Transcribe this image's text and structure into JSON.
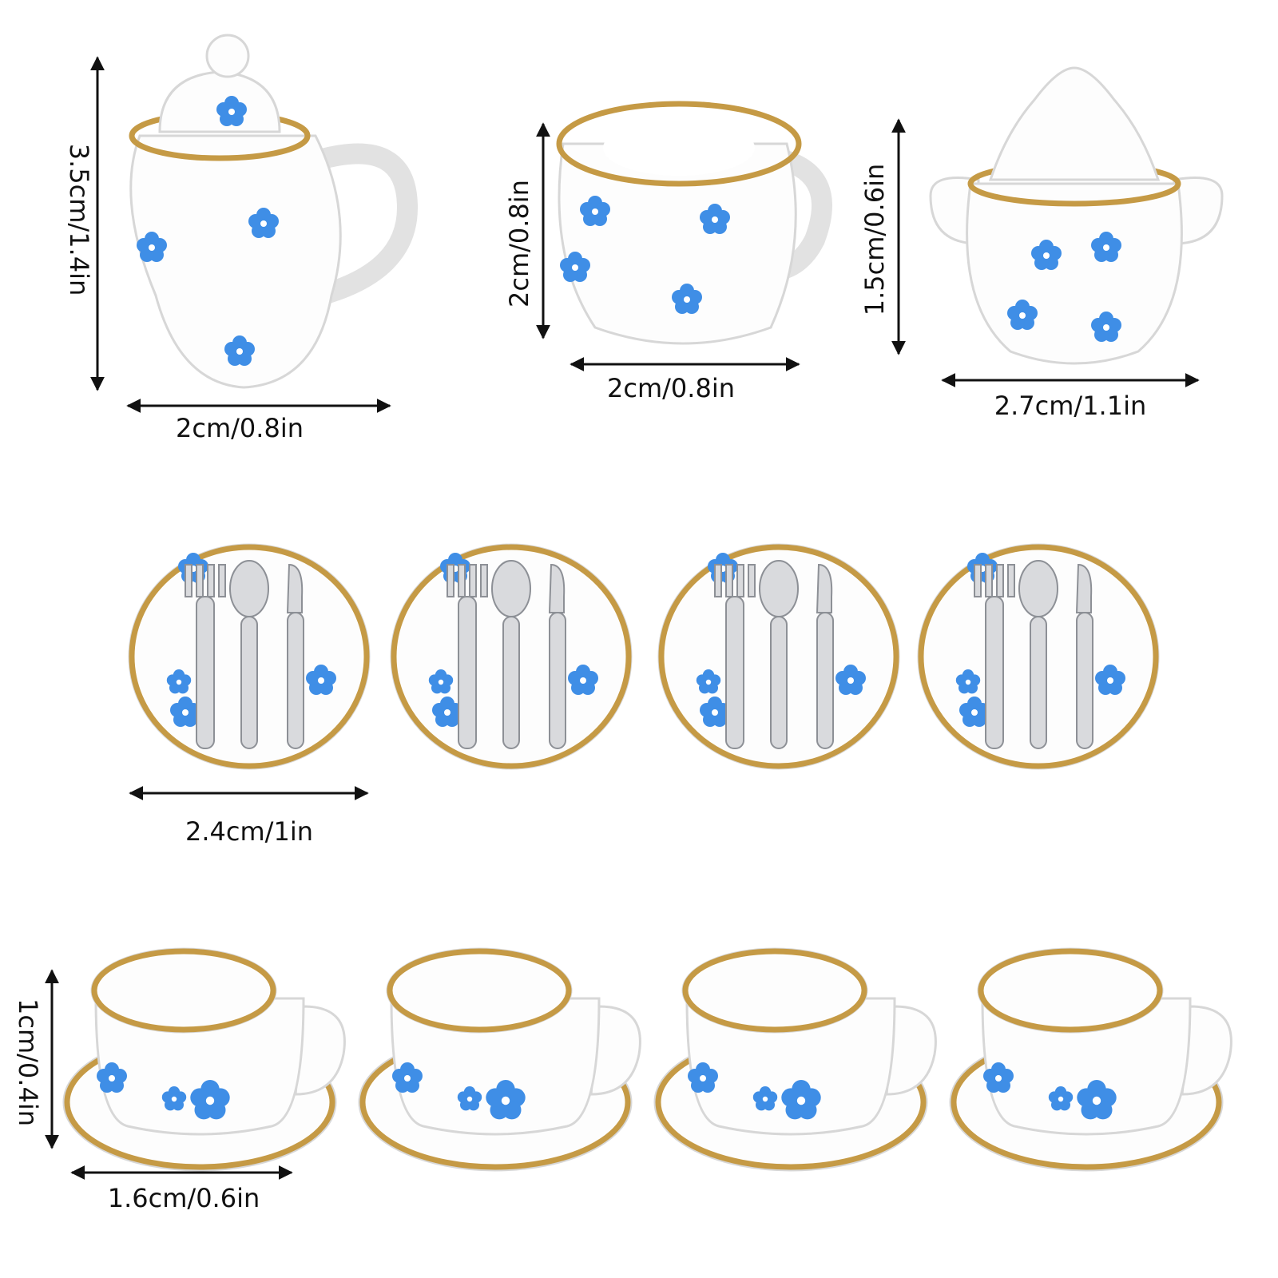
{
  "dimensions": {
    "teapot": {
      "height": "3.5cm/1.4in",
      "width": "2cm/0.8in"
    },
    "creamer": {
      "height": "2cm/0.8in",
      "width": "2cm/0.8in"
    },
    "sugar_bowl": {
      "height": "1.5cm/0.6in",
      "width": "2.7cm/1.1in"
    },
    "plate": {
      "width": "2.4cm/1in"
    },
    "cup": {
      "height": "1cm/0.4in",
      "width": "1.6cm/0.6in"
    }
  }
}
